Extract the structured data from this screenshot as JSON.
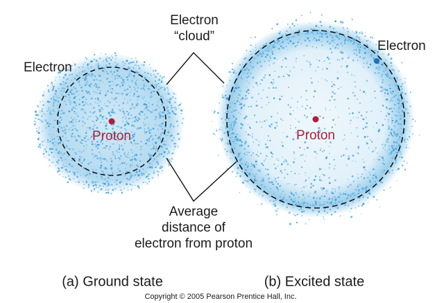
{
  "ground_state": {
    "electron_label": "Electron",
    "proton_label": "Proton",
    "caption": "(a) Ground state"
  },
  "excited_state": {
    "electron_label": "Electron",
    "proton_label": "Proton",
    "caption": "(b) Excited state"
  },
  "cloud_label": [
    "Electron",
    "“cloud”"
  ],
  "distance_label": [
    "Average",
    "distance of",
    "electron from proton"
  ],
  "copyright": "Copyright © 2005 Pearson Prentice Hall, Inc."
}
